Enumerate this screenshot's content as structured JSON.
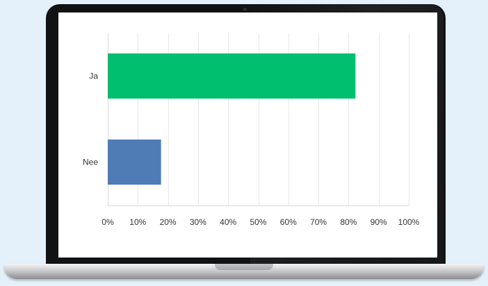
{
  "chart_data": {
    "type": "bar",
    "orientation": "horizontal",
    "categories": [
      "Ja",
      "Nee"
    ],
    "values": [
      82.3,
      17.7
    ],
    "colors": [
      "#00bf6f",
      "#507cb6"
    ],
    "xlim": [
      0,
      100
    ],
    "xticks": [
      "0%",
      "10%",
      "20%",
      "30%",
      "40%",
      "50%",
      "60%",
      "70%",
      "80%",
      "90%",
      "100%"
    ],
    "grid": true,
    "title": "",
    "xlabel": "",
    "ylabel": ""
  },
  "colors": {
    "background": "#e4f1fb",
    "bezel": "#111214",
    "gridline": "#e8e8e8"
  }
}
